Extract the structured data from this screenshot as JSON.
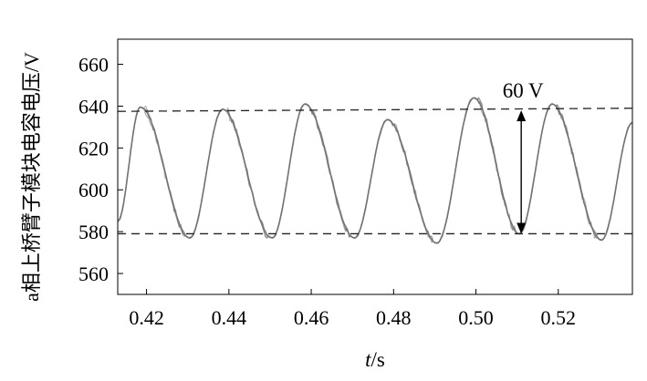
{
  "chart_data": {
    "type": "line",
    "title": "",
    "xlabel_italic": "t",
    "xlabel_unit": "/s",
    "ylabel": "a相上桥臂子模块电容电压/V",
    "xlim": [
      0.413,
      0.538
    ],
    "ylim": [
      550,
      672
    ],
    "x_ticks": [
      0.42,
      0.44,
      0.46,
      0.48,
      0.5,
      0.52
    ],
    "x_tick_labels": [
      "0.42",
      "0.44",
      "0.46",
      "0.48",
      "0.50",
      "0.52"
    ],
    "y_ticks": [
      560,
      580,
      600,
      620,
      640,
      660
    ],
    "y_tick_labels": [
      "560",
      "580",
      "600",
      "620",
      "640",
      "660"
    ],
    "grid": false,
    "legend": false,
    "reference_lines": [
      {
        "y_start": 637.5,
        "y_end": 639,
        "style": "dashed"
      },
      {
        "y_start": 579,
        "y_end": 579,
        "style": "dashed"
      }
    ],
    "annotation": {
      "text": "60 V",
      "x": 0.511,
      "y_top": 638,
      "y_bottom": 579,
      "style": "double-arrow"
    },
    "series": [
      {
        "color": "#707070",
        "peaks": [
          {
            "t": 0.4185,
            "v": 639.5
          },
          {
            "t": 0.4385,
            "v": 638.5
          },
          {
            "t": 0.4585,
            "v": 641
          },
          {
            "t": 0.4785,
            "v": 633.5
          },
          {
            "t": 0.4995,
            "v": 644
          },
          {
            "t": 0.5185,
            "v": 641
          }
        ],
        "troughs": [
          {
            "t": 0.4305,
            "v": 577
          },
          {
            "t": 0.4505,
            "v": 577
          },
          {
            "t": 0.4705,
            "v": 577
          },
          {
            "t": 0.4905,
            "v": 574.5
          },
          {
            "t": 0.5105,
            "v": 579
          },
          {
            "t": 0.5305,
            "v": 576
          }
        ],
        "start": {
          "t": 0.413,
          "v": 585
        },
        "end": {
          "t": 0.538,
          "v": 632
        }
      }
    ]
  }
}
